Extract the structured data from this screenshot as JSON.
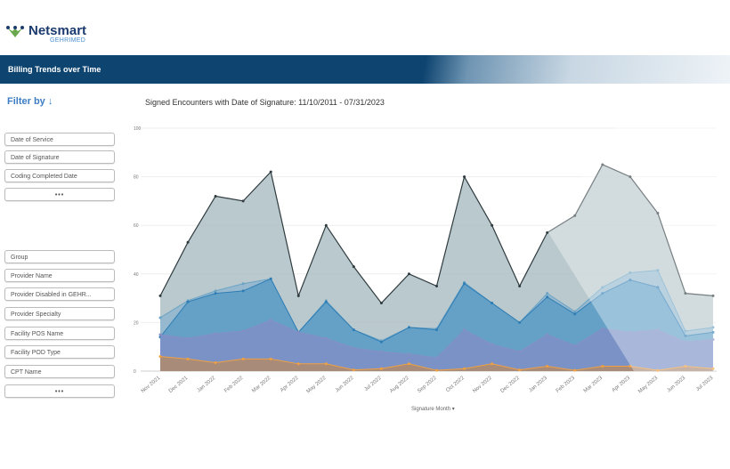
{
  "brand": {
    "name": "Netsmart",
    "sub": "GEHRIMED"
  },
  "banner": {
    "title": "Billing Trends over Time"
  },
  "filter": {
    "title": "Filter by ↓",
    "date_items": [
      "Date of Service",
      "Date of Signature",
      "Coding Completed Date",
      "•••"
    ],
    "dimension_items": [
      "Group",
      "Provider Name",
      "Provider Disabled in GEHR...",
      "Provider Specialty",
      "Facility POS Name",
      "Facility POD Type",
      "CPT Name",
      "•••"
    ]
  },
  "chart_title": "Signed Encounters with Date of Signature: 11/10/2011 - 07/31/2023",
  "x_axis_title": "Signature Month ▾",
  "chart_data": {
    "type": "area",
    "title": "Signed Encounters with Date of Signature: 11/10/2011 - 07/31/2023",
    "xlabel": "Signature Month",
    "ylim": [
      0,
      100
    ],
    "yticks": [
      0,
      20,
      40,
      60,
      80,
      100
    ],
    "grid": true,
    "categories": [
      "Nov 2021",
      "Dec 2021",
      "Jan 2022",
      "Feb 2022",
      "Mar 2022",
      "Apr 2022",
      "May 2022",
      "Jun 2022",
      "Jul 2022",
      "Aug 2022",
      "Sep 2022",
      "Oct 2022",
      "Nov 2022",
      "Dec 2022",
      "Jan 2023",
      "Feb 2023",
      "Mar 2023",
      "Apr 2023",
      "May 2023",
      "Jun 2023",
      "Jul 2023"
    ],
    "series": [
      {
        "color": "#a9bcc0",
        "line": "#2f3b3f",
        "values": [
          31,
          53,
          72,
          70,
          82,
          31,
          60,
          43,
          28,
          40,
          35,
          80,
          60,
          35,
          57,
          64,
          85,
          80,
          65,
          32,
          31
        ]
      },
      {
        "color": "#8fb6cf",
        "line": "#6aa3c4",
        "values": [
          22,
          29,
          33,
          36,
          38,
          16,
          29,
          17,
          12.5,
          18,
          17.5,
          36.5,
          28,
          20,
          32,
          24.5,
          34.5,
          40.5,
          41.5,
          16.5,
          18
        ]
      },
      {
        "color": "#5d9cc4",
        "line": "#2f7db5",
        "values": [
          14,
          28.5,
          32,
          33,
          38,
          16,
          28.5,
          17,
          12,
          18,
          17,
          36,
          28,
          20,
          30.5,
          23.5,
          32,
          37.5,
          34.5,
          14.5,
          16
        ]
      },
      {
        "color": "#7f8fc7",
        "line": "#8390c6",
        "values": [
          15,
          13.5,
          15.5,
          16.5,
          21,
          16,
          13.5,
          9.5,
          8,
          7,
          5.5,
          17,
          11,
          8,
          15,
          10.5,
          17.5,
          16,
          17,
          12,
          13
        ]
      },
      {
        "color": "#b28a6c",
        "line": "#f0a040",
        "values": [
          6,
          5,
          3.5,
          5,
          5,
          3,
          3,
          0.5,
          1,
          3,
          0.3,
          1,
          3,
          0.5,
          2,
          0.3,
          2,
          2,
          0.3,
          2,
          1
        ]
      }
    ]
  }
}
